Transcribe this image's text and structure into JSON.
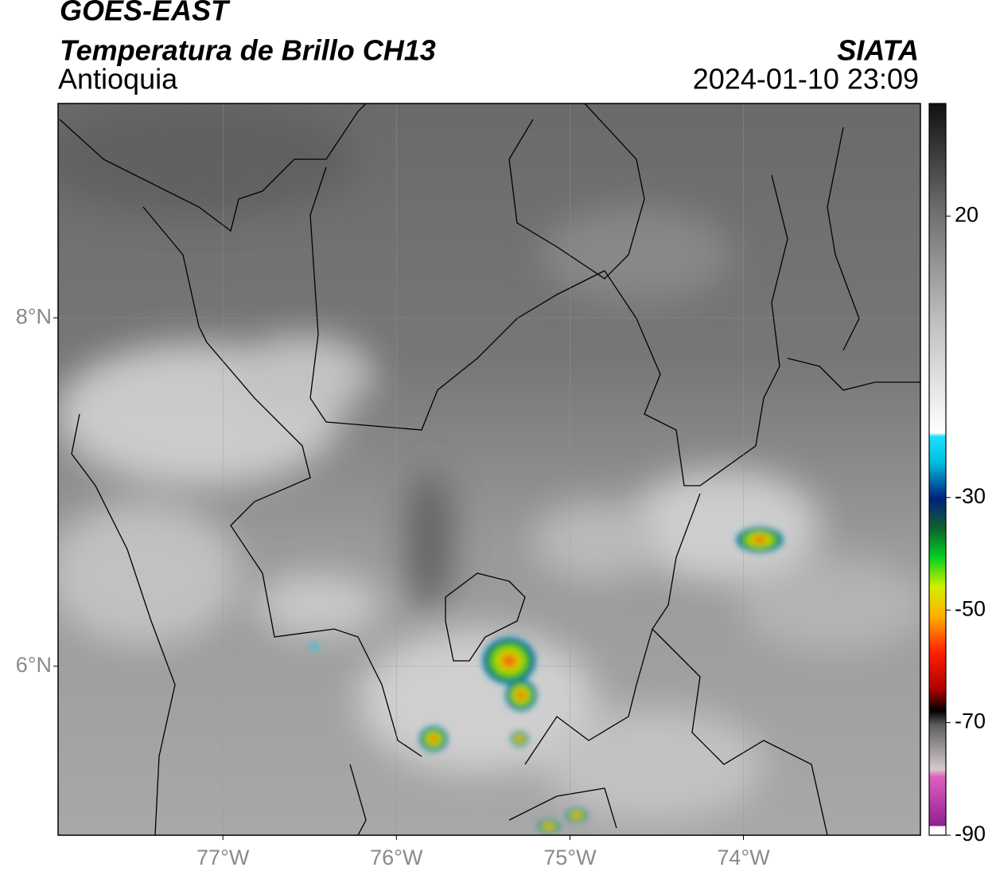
{
  "header": {
    "title": "GOES-EAST",
    "subtitle": "Temperatura de Brillo CH13",
    "region": "Antioquia",
    "source": "SIATA",
    "datetime": "2024-01-10 23:09"
  },
  "map": {
    "xlim": [
      -77.95,
      -72.98
    ],
    "ylim": [
      5.03,
      9.23
    ],
    "xticks": [
      {
        "value": -77,
        "label": "77°W"
      },
      {
        "value": -76,
        "label": "76°W"
      },
      {
        "value": -75,
        "label": "75°W"
      },
      {
        "value": -74,
        "label": "74°W"
      }
    ],
    "yticks": [
      {
        "value": 8,
        "label": "8°N"
      },
      {
        "value": 6,
        "label": "6°N"
      }
    ],
    "grid": true
  },
  "colorbar": {
    "lim": [
      -90,
      40
    ],
    "ticks": [
      20,
      -30,
      -50,
      -70,
      -90
    ]
  }
}
